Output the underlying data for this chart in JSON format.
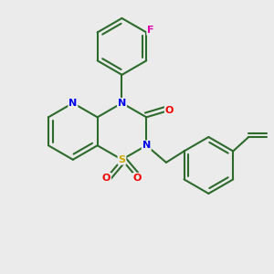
{
  "bg_color": "#ebebeb",
  "bond_color": "#2d6b2d",
  "bond_width": 1.5,
  "atom_colors": {
    "N": "#0000ee",
    "O": "#ee0000",
    "S": "#ccaa00",
    "F": "#dd00aa",
    "C": "#2d6b2d"
  }
}
